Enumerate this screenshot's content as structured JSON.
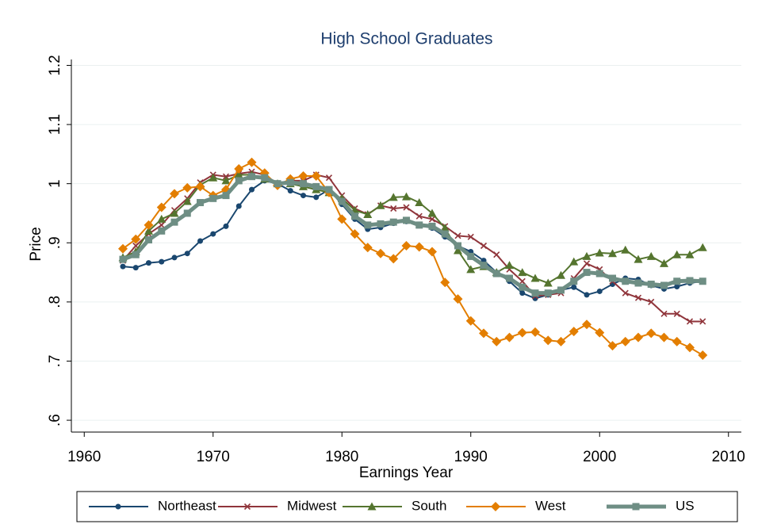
{
  "chart_data": {
    "type": "line",
    "title": "High School Graduates",
    "x_label": "Earnings Year",
    "y_label": "Price",
    "x": [
      1963,
      1964,
      1965,
      1966,
      1967,
      1968,
      1969,
      1970,
      1971,
      1972,
      1973,
      1974,
      1975,
      1976,
      1977,
      1978,
      1979,
      1980,
      1981,
      1982,
      1983,
      1984,
      1985,
      1986,
      1987,
      1988,
      1989,
      1990,
      1991,
      1992,
      1993,
      1994,
      1995,
      1996,
      1997,
      1998,
      1999,
      2000,
      2001,
      2002,
      2003,
      2004,
      2005,
      2006,
      2007,
      2008
    ],
    "xlim": [
      1959,
      2011
    ],
    "xticks": [
      1960,
      1970,
      1980,
      1990,
      2000,
      2010
    ],
    "ylim": [
      0.58,
      1.21
    ],
    "yticks": [
      {
        "value": 0.6,
        "label": ".6"
      },
      {
        "value": 0.7,
        "label": ".7"
      },
      {
        "value": 0.8,
        "label": ".8"
      },
      {
        "value": 0.9,
        "label": ".9"
      },
      1,
      1.1,
      1.2
    ],
    "grid": true,
    "legend": "bottom",
    "series": [
      {
        "name": "Northeast",
        "color": "#1a476f",
        "marker": "circle",
        "width": 2,
        "values": [
          0.86,
          0.858,
          0.866,
          0.868,
          0.875,
          0.882,
          0.903,
          0.915,
          0.928,
          0.962,
          0.99,
          1.005,
          1.0,
          0.988,
          0.98,
          0.977,
          0.99,
          0.965,
          0.94,
          0.923,
          0.926,
          0.933,
          0.936,
          0.93,
          0.925,
          0.91,
          0.895,
          0.885,
          0.87,
          0.85,
          0.835,
          0.815,
          0.806,
          0.812,
          0.82,
          0.825,
          0.812,
          0.818,
          0.83,
          0.84,
          0.838,
          0.828,
          0.822,
          0.826,
          0.832,
          0.835
        ]
      },
      {
        "name": "Midwest",
        "color": "#90353b",
        "marker": "x",
        "width": 2,
        "values": [
          0.87,
          0.895,
          0.915,
          0.93,
          0.955,
          0.975,
          1.002,
          1.015,
          1.012,
          1.017,
          1.02,
          1.015,
          1.0,
          1.005,
          1.005,
          1.015,
          1.01,
          0.98,
          0.958,
          0.948,
          0.963,
          0.958,
          0.96,
          0.945,
          0.94,
          0.928,
          0.912,
          0.91,
          0.895,
          0.88,
          0.855,
          0.835,
          0.81,
          0.812,
          0.815,
          0.84,
          0.865,
          0.855,
          0.835,
          0.815,
          0.807,
          0.8,
          0.78,
          0.78,
          0.767,
          0.767
        ]
      },
      {
        "name": "South",
        "color": "#55752f",
        "marker": "triangle",
        "width": 2,
        "values": [
          0.875,
          0.885,
          0.92,
          0.94,
          0.95,
          0.97,
          0.998,
          1.01,
          1.005,
          1.015,
          1.015,
          1.008,
          1.0,
          1.0,
          0.995,
          0.99,
          0.985,
          0.975,
          0.955,
          0.948,
          0.963,
          0.977,
          0.978,
          0.968,
          0.95,
          0.925,
          0.887,
          0.855,
          0.86,
          0.85,
          0.862,
          0.85,
          0.84,
          0.832,
          0.845,
          0.868,
          0.877,
          0.883,
          0.882,
          0.888,
          0.872,
          0.877,
          0.865,
          0.88,
          0.88,
          0.892
        ]
      },
      {
        "name": "West",
        "color": "#e37e00",
        "marker": "diamond",
        "width": 2,
        "values": [
          0.89,
          0.906,
          0.93,
          0.96,
          0.983,
          0.993,
          0.995,
          0.98,
          0.99,
          1.025,
          1.036,
          1.018,
          0.997,
          1.008,
          1.013,
          1.013,
          0.985,
          0.94,
          0.915,
          0.892,
          0.882,
          0.873,
          0.895,
          0.893,
          0.885,
          0.833,
          0.805,
          0.768,
          0.747,
          0.733,
          0.74,
          0.748,
          0.749,
          0.735,
          0.733,
          0.75,
          0.762,
          0.748,
          0.726,
          0.733,
          0.74,
          0.747,
          0.74,
          0.733,
          0.723,
          0.71
        ]
      },
      {
        "name": "US",
        "color": "#6e8e84",
        "marker": "square",
        "width": 5,
        "values": [
          0.872,
          0.88,
          0.905,
          0.92,
          0.935,
          0.95,
          0.968,
          0.975,
          0.98,
          1.005,
          1.012,
          1.01,
          1.0,
          1.002,
          1.0,
          0.995,
          0.99,
          0.97,
          0.945,
          0.93,
          0.932,
          0.935,
          0.938,
          0.93,
          0.928,
          0.915,
          0.895,
          0.877,
          0.862,
          0.848,
          0.84,
          0.825,
          0.815,
          0.815,
          0.82,
          0.835,
          0.85,
          0.848,
          0.84,
          0.835,
          0.832,
          0.83,
          0.828,
          0.835,
          0.836,
          0.835
        ]
      }
    ]
  }
}
